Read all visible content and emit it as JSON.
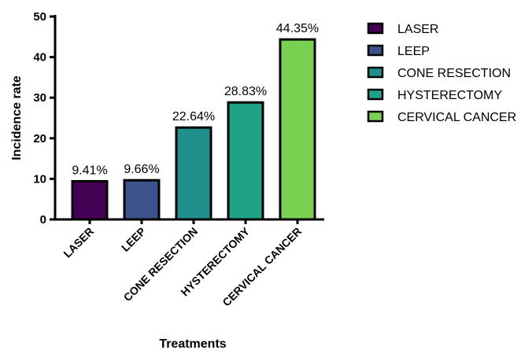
{
  "chart_data": {
    "type": "bar",
    "title": "",
    "xlabel": "Treatments",
    "ylabel": "Incidence rate",
    "ylim": [
      0,
      50
    ],
    "yticks": [
      0,
      10,
      20,
      30,
      40,
      50
    ],
    "categories": [
      "LASER",
      "LEEP",
      "CONE RESECTION",
      "HYSTERECTOMY",
      "CERVICAL CANCER"
    ],
    "values": [
      9.41,
      9.66,
      22.64,
      28.83,
      44.35
    ],
    "data_labels": [
      "9.41%",
      "9.66%",
      "22.64%",
      "28.83%",
      "44.35%"
    ],
    "colors": [
      "#440154",
      "#3b528b",
      "#21908d",
      "#1fa187",
      "#7ad151"
    ],
    "legend": {
      "placement": "right",
      "entries": [
        "LASER",
        "LEEP",
        "CONE RESECTION",
        "HYSTERECTOMY",
        "CERVICAL CANCER"
      ]
    },
    "grid": false
  }
}
